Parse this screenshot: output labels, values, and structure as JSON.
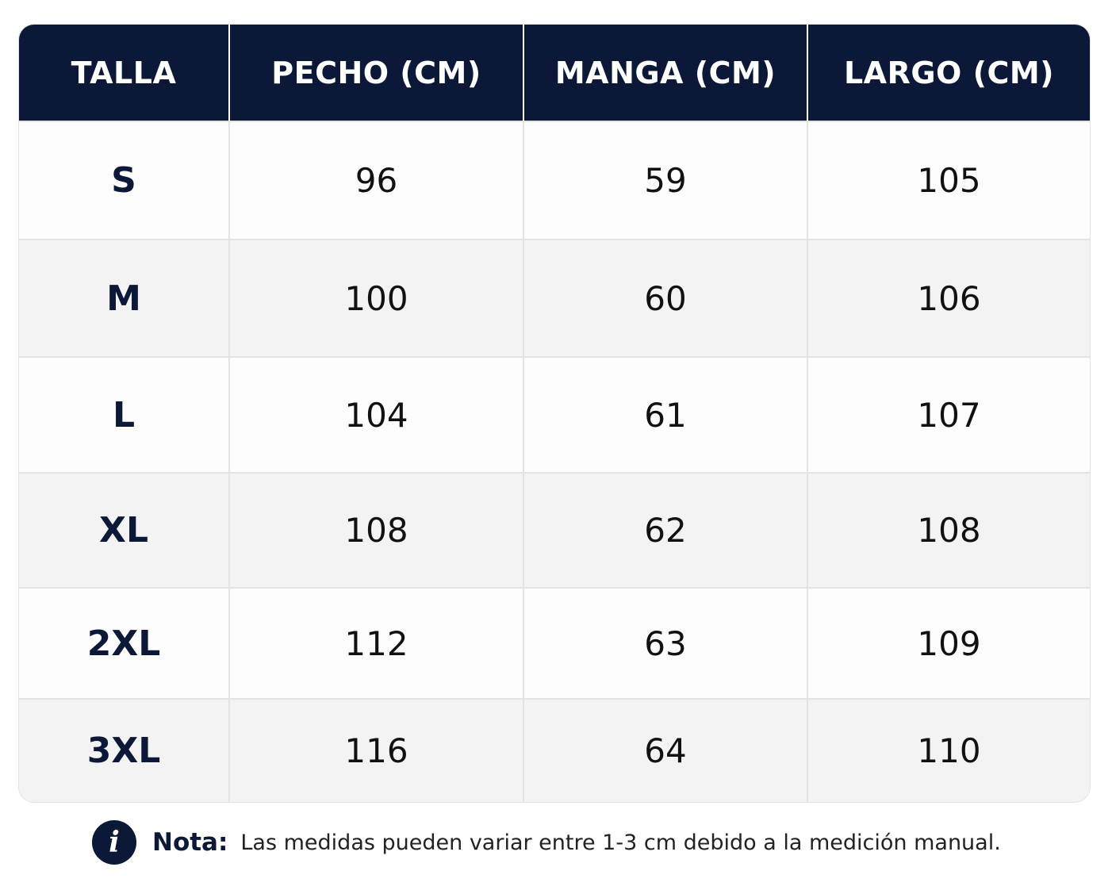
{
  "table": {
    "headers": [
      "TALLA",
      "PECHO (CM)",
      "MANGA (CM)",
      "LARGO (CM)"
    ],
    "rows": [
      [
        "S",
        "96",
        "59",
        "105"
      ],
      [
        "M",
        "100",
        "60",
        "106"
      ],
      [
        "L",
        "104",
        "61",
        "107"
      ],
      [
        "XL",
        "108",
        "62",
        "108"
      ],
      [
        "2XL",
        "112",
        "63",
        "109"
      ],
      [
        "3XL",
        "116",
        "64",
        "110"
      ]
    ]
  },
  "note": {
    "icon": "info-icon",
    "icon_glyph": "i",
    "label": "Nota:",
    "text": "Las medidas pueden variar entre 1-3 cm debido a la medición manual."
  },
  "colors": {
    "header_bg": "#0b1838",
    "accent": "#0b1838",
    "row_alt": "#f3f3f3"
  }
}
